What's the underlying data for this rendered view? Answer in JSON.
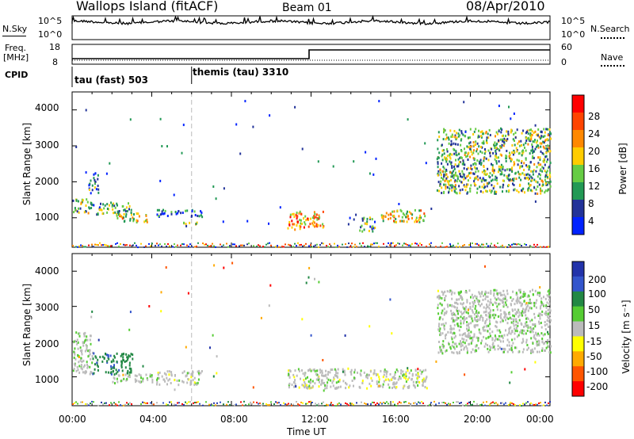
{
  "header": {
    "station": "Wallops Island (fitACF)",
    "beam": "Beam 01",
    "date": "08/Apr/2010"
  },
  "strips": {
    "nsky_label": "N.Sky",
    "nsky_ticks": [
      "10^5",
      "10^0"
    ],
    "nsearch_label": "N.Search",
    "freq_label_line1": "Freq.",
    "freq_label_line2": "[MHz]",
    "freq_ticks": [
      "18",
      "8"
    ],
    "nave_label": "Nave",
    "nave_ticks": [
      "60",
      "0"
    ],
    "cpid_label": "CPID",
    "cpid_modes": [
      "tau (fast) 503",
      "themis (tau) 3310"
    ]
  },
  "power_panel": {
    "ylabel": "Slant Range [km]",
    "yticks": [
      "4000",
      "3000",
      "2000",
      "1000"
    ],
    "colorbar_label": "Power [dB]",
    "colorbar_ticks": [
      "28",
      "24",
      "20",
      "16",
      "12",
      "8",
      "4"
    ],
    "colorbar_colors": [
      "#ff0000",
      "#ff4400",
      "#ff8800",
      "#ffcc00",
      "#66cc44",
      "#229955",
      "#223399",
      "#0022ff"
    ]
  },
  "velocity_panel": {
    "ylabel": "Slant Range [km]",
    "yticks": [
      "4000",
      "3000",
      "2000",
      "1000"
    ],
    "colorbar_label": "Velocity [m s⁻¹]",
    "colorbar_ticks": [
      "200",
      "100",
      "50",
      "15",
      "-15",
      "-50",
      "-100",
      "-200"
    ],
    "colorbar_colors": [
      "#2233aa",
      "#3355cc",
      "#228844",
      "#55cc33",
      "#bbbbbb",
      "#ffff00",
      "#ffaa00",
      "#ff5500",
      "#ff0000"
    ]
  },
  "xaxis": {
    "ticks": [
      "00:00",
      "04:00",
      "08:00",
      "12:00",
      "16:00",
      "20:00",
      "00:00"
    ],
    "label": "Time UT"
  },
  "chart_data": {
    "type": "heatmap",
    "x_unit": "hours UT",
    "xlim": [
      0,
      24
    ],
    "y_unit": "km",
    "ylim": [
      180,
      4500
    ],
    "power_dB_range": [
      0,
      30
    ],
    "velocity_range": [
      -250,
      250
    ],
    "cpid_switch_hour": 6.0,
    "freq_step_hour": 11.9,
    "power_scatter": [
      {
        "x": [
          0.0,
          1.0
        ],
        "y": [
          1150,
          1550
        ],
        "power": 12
      },
      {
        "x": [
          0.8,
          1.3
        ],
        "y": [
          1700,
          2300
        ],
        "power": 8
      },
      {
        "x": [
          1.2,
          3.0
        ],
        "y": [
          1100,
          1450
        ],
        "power": 10
      },
      {
        "x": [
          2.2,
          3.8
        ],
        "y": [
          900,
          1150
        ],
        "power": 16
      },
      {
        "x": [
          4.2,
          6.5
        ],
        "y": [
          1050,
          1250
        ],
        "power": 6
      },
      {
        "x": [
          5.5,
          6.5
        ],
        "y": [
          800,
          900
        ],
        "power": 12
      },
      {
        "x": [
          10.8,
          12.6
        ],
        "y": [
          700,
          1200
        ],
        "power": 20
      },
      {
        "x": [
          14.4,
          15.2
        ],
        "y": [
          650,
          1050
        ],
        "power": 10
      },
      {
        "x": [
          15.5,
          17.8
        ],
        "y": [
          900,
          1250
        ],
        "power": 16
      },
      {
        "x": [
          18.3,
          24.0
        ],
        "y": [
          1700,
          3500
        ],
        "power": 12
      }
    ],
    "velocity_scatter": [
      {
        "x": [
          0.0,
          1.0
        ],
        "y": [
          1100,
          2300
        ],
        "velocity": 10
      },
      {
        "x": [
          1.0,
          3.0
        ],
        "y": [
          1100,
          1700
        ],
        "velocity": 60
      },
      {
        "x": [
          2.0,
          4.0
        ],
        "y": [
          850,
          1100
        ],
        "velocity": 10
      },
      {
        "x": [
          4.2,
          6.5
        ],
        "y": [
          800,
          1200
        ],
        "velocity": 0
      },
      {
        "x": [
          10.8,
          17.8
        ],
        "y": [
          700,
          1250
        ],
        "velocity": 0
      },
      {
        "x": [
          18.3,
          24.0
        ],
        "y": [
          1700,
          3500
        ],
        "velocity": 5
      }
    ],
    "ground_band": {
      "y": [
        200,
        320
      ],
      "x": [
        0.0,
        24.0
      ]
    }
  }
}
